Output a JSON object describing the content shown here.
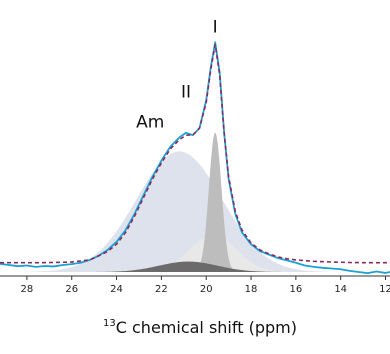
{
  "chart_data": {
    "type": "area",
    "xlabel_superscript": "13",
    "xlabel": "C chemical shift (ppm)",
    "xlim": [
      29.2,
      11.8
    ],
    "ylim": [
      0,
      1.0
    ],
    "x_reversed": true,
    "grid": false,
    "xticks": [
      28,
      26,
      24,
      22,
      20,
      18,
      16,
      14,
      12
    ],
    "xtick_labels": [
      "28",
      "26",
      "24",
      "22",
      "20",
      "18",
      "16",
      "14",
      "12"
    ],
    "annotations": [
      {
        "text": "I",
        "x": 19.6,
        "y": 0.99
      },
      {
        "text": "II",
        "x": 20.9,
        "y": 0.71
      },
      {
        "text": "Am",
        "x": 22.5,
        "y": 0.58
      }
    ],
    "components": [
      {
        "label": "Am",
        "center": 21.2,
        "width": 1.9,
        "height": 0.52,
        "fill": "#dde2ec"
      },
      {
        "label": "II",
        "center": 20.8,
        "width": 1.3,
        "height": 0.045,
        "fill": "#6b6b6b"
      },
      {
        "label": "I",
        "center": 19.6,
        "width": 0.28,
        "height": 0.6,
        "fill": "#bdbdbd"
      },
      {
        "label": "broad",
        "center": 19.7,
        "width": 1.05,
        "height": 0.16,
        "fill": "#e8e8e8"
      }
    ],
    "series": [
      {
        "style": "experimental",
        "color": "#1aa0d6",
        "line": "solid",
        "x": [
          29.2,
          28.8,
          28.4,
          28.0,
          27.6,
          27.2,
          26.8,
          26.4,
          26.0,
          25.6,
          25.2,
          24.8,
          24.4,
          24.0,
          23.6,
          23.2,
          22.8,
          22.4,
          22.0,
          21.6,
          21.2,
          20.9,
          20.6,
          20.3,
          20.0,
          19.8,
          19.6,
          19.4,
          19.2,
          19.0,
          18.7,
          18.4,
          18.0,
          17.6,
          17.2,
          16.8,
          16.4,
          16.0,
          15.6,
          15.2,
          14.8,
          14.4,
          14.0,
          13.6,
          13.2,
          12.8,
          12.4,
          12.0,
          11.8
        ],
        "y": [
          0.035,
          0.03,
          0.025,
          0.028,
          0.022,
          0.026,
          0.024,
          0.03,
          0.034,
          0.04,
          0.052,
          0.07,
          0.095,
          0.13,
          0.18,
          0.25,
          0.33,
          0.41,
          0.48,
          0.54,
          0.58,
          0.6,
          0.59,
          0.62,
          0.74,
          0.88,
          0.99,
          0.86,
          0.6,
          0.4,
          0.25,
          0.17,
          0.12,
          0.09,
          0.075,
          0.06,
          0.05,
          0.04,
          0.028,
          0.022,
          0.018,
          0.015,
          0.012,
          0.005,
          0.0,
          -0.005,
          0.002,
          -0.004,
          0.0
        ]
      },
      {
        "style": "fit",
        "color": "#8b2a5a",
        "line": "dashed",
        "x": [
          29.2,
          28.4,
          27.6,
          26.8,
          26.0,
          25.2,
          24.4,
          24.0,
          23.6,
          23.2,
          22.8,
          22.4,
          22.0,
          21.6,
          21.2,
          20.9,
          20.6,
          20.3,
          20.0,
          19.8,
          19.6,
          19.4,
          19.2,
          19.0,
          18.7,
          18.4,
          18.0,
          17.6,
          17.2,
          16.8,
          16.4,
          16.0,
          15.2,
          14.4,
          13.6,
          12.8,
          12.0,
          11.8
        ],
        "y": [
          0.04,
          0.04,
          0.04,
          0.041,
          0.043,
          0.052,
          0.088,
          0.12,
          0.17,
          0.24,
          0.32,
          0.4,
          0.47,
          0.53,
          0.57,
          0.59,
          0.59,
          0.62,
          0.73,
          0.87,
          0.98,
          0.85,
          0.6,
          0.41,
          0.26,
          0.18,
          0.125,
          0.095,
          0.078,
          0.065,
          0.057,
          0.052,
          0.046,
          0.043,
          0.041,
          0.04,
          0.04,
          0.04
        ]
      }
    ]
  }
}
